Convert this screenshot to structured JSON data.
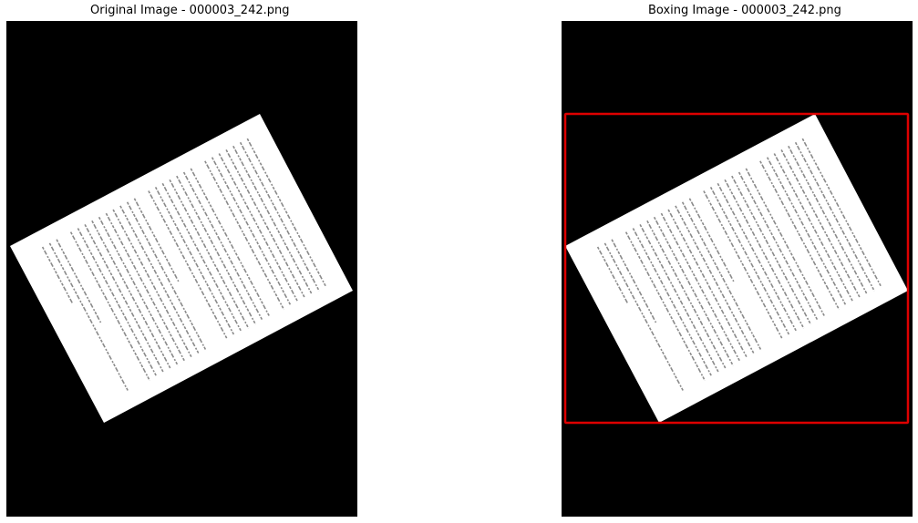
{
  "panels": [
    {
      "title": "Original Image - 000003_242.png",
      "show_box": false
    },
    {
      "title": "Boxing Image - 000003_242.png",
      "show_box": true
    }
  ],
  "colors": {
    "background": "#000000",
    "page": "#ffffff",
    "text_lines": "#8a8a8a",
    "box": "#dd0000"
  }
}
